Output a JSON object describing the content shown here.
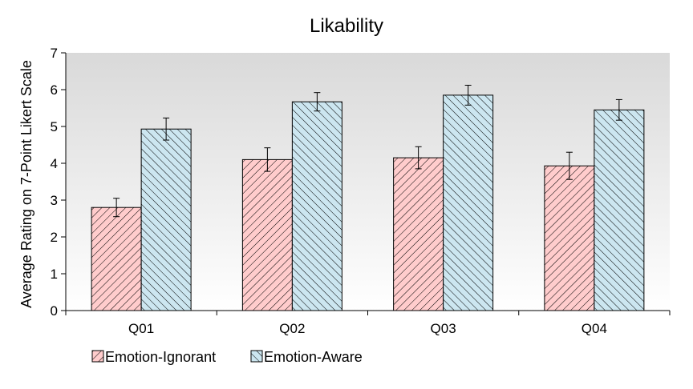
{
  "chart_data": {
    "type": "bar",
    "title": "Likability",
    "xlabel": "",
    "ylabel": "Average Rating on 7-Point Likert Scale",
    "ylim": [
      0,
      7
    ],
    "yticks": [
      "0",
      "1",
      "2",
      "3",
      "4",
      "5",
      "6",
      "7"
    ],
    "categories": [
      "Q01",
      "Q02",
      "Q03",
      "Q04"
    ],
    "series": [
      {
        "name": "Emotion-Ignorant",
        "values": [
          2.8,
          4.1,
          4.15,
          3.93
        ],
        "error": [
          0.25,
          0.32,
          0.3,
          0.37
        ],
        "color": "#ffcccc",
        "hatch": "diagonal-forward"
      },
      {
        "name": "Emotion-Aware",
        "values": [
          4.93,
          5.67,
          5.85,
          5.45
        ],
        "error": [
          0.3,
          0.25,
          0.27,
          0.28
        ],
        "color": "#cce6f0",
        "hatch": "diagonal-backward"
      }
    ],
    "grid": false,
    "plot_background": "gradient-gray",
    "legend_position": "bottom-left"
  }
}
